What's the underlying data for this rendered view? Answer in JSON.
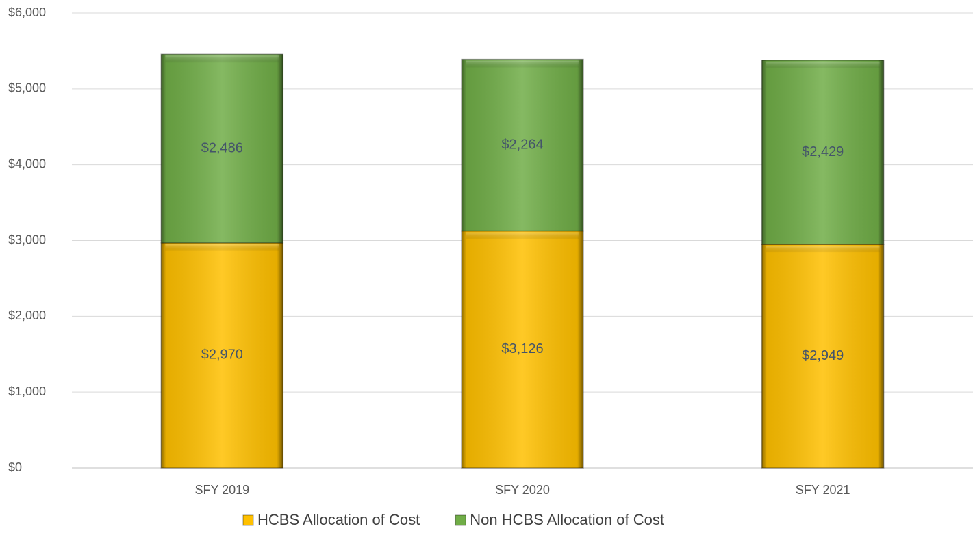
{
  "chart_data": {
    "type": "stacked_bar",
    "categories": [
      "SFY 2019",
      "SFY 2020",
      "SFY 2021"
    ],
    "series": [
      {
        "name": "HCBS Allocation of Cost",
        "color": "#ffc000",
        "values": [
          2970,
          3126,
          2949
        ],
        "value_labels": [
          "$2,970",
          "$3,126",
          "$2,949"
        ]
      },
      {
        "name": "Non HCBS Allocation of Cost",
        "color": "#70ad47",
        "values": [
          2486,
          2264,
          2429
        ],
        "value_labels": [
          "$2,486",
          "$2,264",
          "$2,429"
        ]
      }
    ],
    "ylim": [
      0,
      6000
    ],
    "yticks": [
      {
        "value": 0,
        "label": "$0"
      },
      {
        "value": 1000,
        "label": "$1,000"
      },
      {
        "value": 2000,
        "label": "$2,000"
      },
      {
        "value": 3000,
        "label": "$3,000"
      },
      {
        "value": 4000,
        "label": "$4,000"
      },
      {
        "value": 5000,
        "label": "$5,000"
      },
      {
        "value": 6000,
        "label": "$6,000"
      }
    ],
    "grid": true,
    "legend": "bottom"
  }
}
